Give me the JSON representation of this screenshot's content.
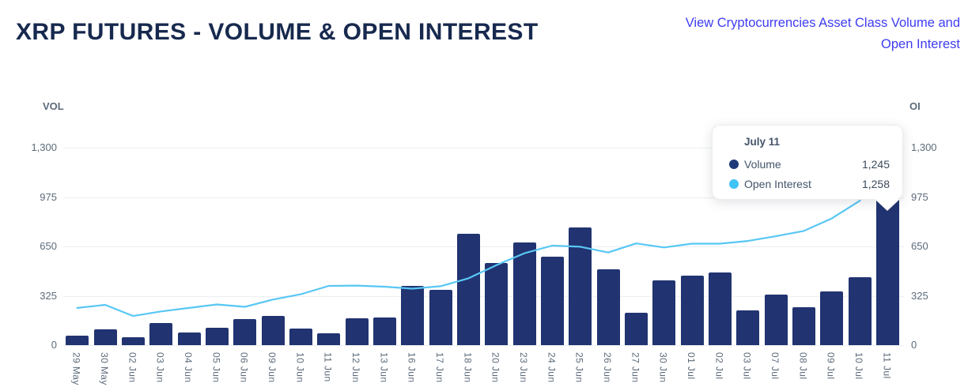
{
  "header": {
    "title": "XRP FUTURES - VOLUME & OPEN INTEREST",
    "link_label": "View Cryptocurrencies Asset Class Volume and\nOpen Interest"
  },
  "chart": {
    "left_axis_label": "VOL",
    "right_axis_label": "OI"
  },
  "chart_data": {
    "type": "bar",
    "subtype": "bar+line combo, dual identical axes",
    "title": "XRP Futures - Volume & Open Interest",
    "categories": [
      "29 May",
      "30 May",
      "02 Jun",
      "03 Jun",
      "04 Jun",
      "05 Jun",
      "06 Jun",
      "09 Jun",
      "10 Jun",
      "11 Jun",
      "12 Jun",
      "13 Jun",
      "16 Jun",
      "17 Jun",
      "18 Jun",
      "20 Jun",
      "23 Jun",
      "24 Jun",
      "25 Jun",
      "26 Jun",
      "27 Jun",
      "30 Jun",
      "01 Jul",
      "02 Jul",
      "03 Jul",
      "07 Jul",
      "08 Jul",
      "09 Jul",
      "10 Jul",
      "11 Jul"
    ],
    "series": [
      {
        "name": "Volume",
        "type": "bar",
        "axis": "VOL",
        "color": "#213370",
        "values": [
          62,
          102,
          53,
          148,
          84,
          114,
          174,
          191,
          110,
          76,
          179,
          182,
          389,
          363,
          733,
          543,
          678,
          583,
          776,
          497,
          215,
          425,
          458,
          480,
          230,
          334,
          251,
          354,
          445,
          1245
        ]
      },
      {
        "name": "Open Interest",
        "type": "line",
        "axis": "OI",
        "color": "#58C7F4",
        "values": [
          245,
          265,
          192,
          222,
          245,
          268,
          252,
          300,
          335,
          390,
          392,
          385,
          372,
          388,
          440,
          527,
          605,
          655,
          648,
          610,
          670,
          643,
          668,
          668,
          686,
          717,
          752,
          834,
          950,
          1258
        ]
      }
    ],
    "ylim": [
      0,
      1300
    ],
    "y_ticks": [
      {
        "value": 0,
        "label": "0"
      },
      {
        "value": 325,
        "label": "325"
      },
      {
        "value": 650,
        "label": "650"
      },
      {
        "value": 975,
        "label": "975"
      },
      {
        "value": 1300,
        "label": "1,300"
      }
    ],
    "grid": "horizontal",
    "legend_position": "none"
  },
  "tooltip": {
    "date": "July 11",
    "highlighted_category": "11 Jul",
    "rows": [
      {
        "label": "Volume",
        "value": "1,245",
        "color": "#1F3A78"
      },
      {
        "label": "Open Interest",
        "value": "1,258",
        "color": "#41C3F7"
      }
    ]
  },
  "colors": {
    "title": "#17294E",
    "link": "#3E3CF2",
    "axis_text": "#5C6B7A",
    "gridline": "#ECEEF1",
    "volume_bar": "#213370",
    "open_interest_line": "#58C7F4"
  }
}
